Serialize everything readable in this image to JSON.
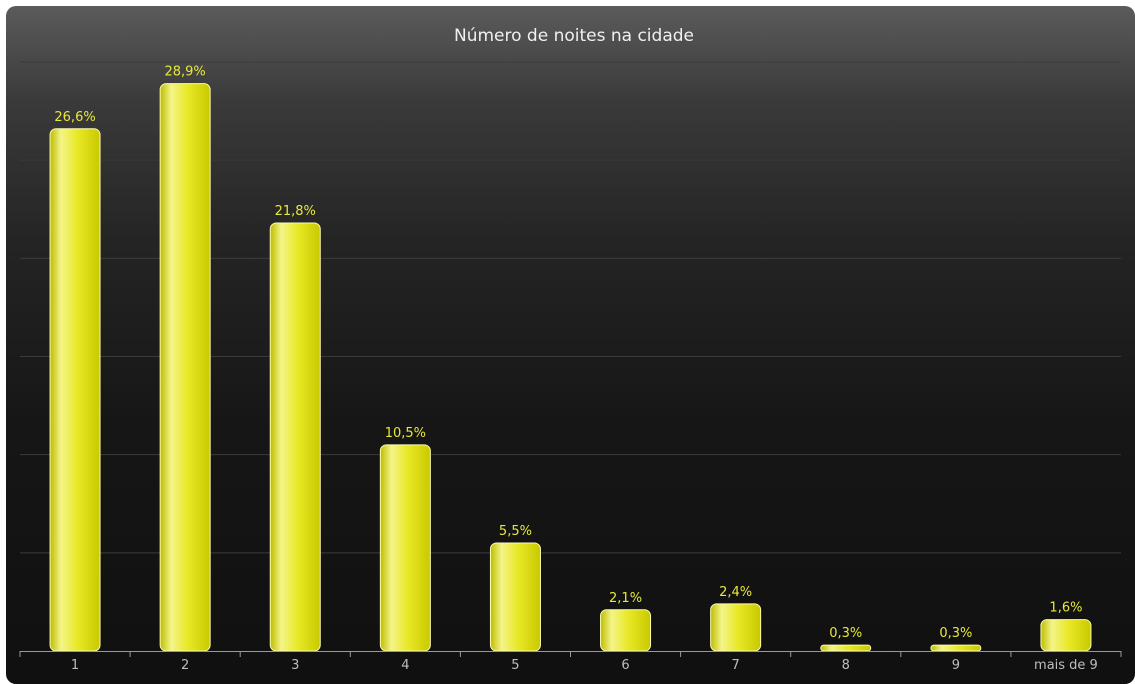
{
  "chart_data": {
    "type": "bar",
    "title": "Número de noites na cidade",
    "categories": [
      "1",
      "2",
      "3",
      "4",
      "5",
      "6",
      "7",
      "8",
      "9",
      "mais de 9"
    ],
    "values": [
      26.6,
      28.9,
      21.8,
      10.5,
      5.5,
      2.1,
      2.4,
      0.3,
      0.3,
      1.6
    ],
    "value_labels": [
      "26,6%",
      "28,9%",
      "21,8%",
      "10,5%",
      "5,5%",
      "2,1%",
      "2,4%",
      "0,3%",
      "0,3%",
      "1,6%"
    ],
    "ylim": [
      0,
      30
    ],
    "grid": true,
    "bar_color": "#e6e622",
    "label_color": "#e8e83a",
    "background_color": "#161616"
  }
}
